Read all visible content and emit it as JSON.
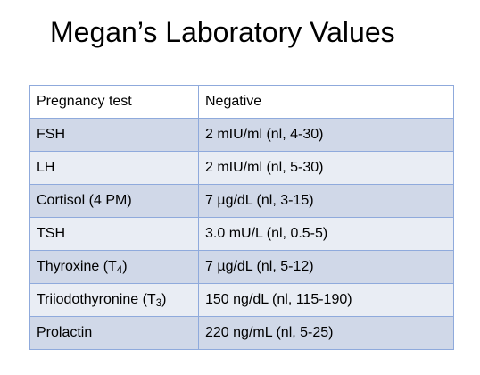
{
  "title": "Megan’s Laboratory Values",
  "rows": [
    {
      "test": "Pregnancy test",
      "test_sub": "",
      "test_suffix": "",
      "result": "Negative"
    },
    {
      "test": "FSH",
      "test_sub": "",
      "test_suffix": "",
      "result": "2 mIU/ml (nl, 4-30)"
    },
    {
      "test": "LH",
      "test_sub": "",
      "test_suffix": "",
      "result": "2 mIU/ml (nl, 5-30)"
    },
    {
      "test": "Cortisol (4 PM)",
      "test_sub": "",
      "test_suffix": "",
      "result": "7 µg/dL (nl, 3-15)"
    },
    {
      "test": "TSH",
      "test_sub": "",
      "test_suffix": "",
      "result": "3.0 mU/L (nl, 0.5-5)"
    },
    {
      "test": "Thyroxine (T",
      "test_sub": "4",
      "test_suffix": ")",
      "result": "7 µg/dL (nl, 5-12)"
    },
    {
      "test": "Triiodothyronine (T",
      "test_sub": "3",
      "test_suffix": ")",
      "result": "150 ng/dL (nl, 115-190)"
    },
    {
      "test": "Prolactin",
      "test_sub": "",
      "test_suffix": "",
      "result": "220 ng/mL (nl, 5-25)"
    }
  ]
}
